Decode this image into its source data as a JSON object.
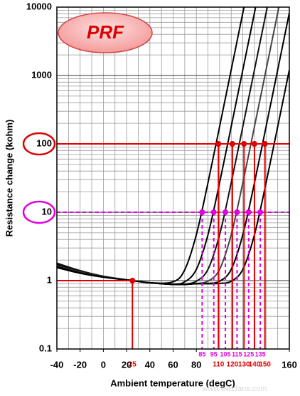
{
  "chart_data": {
    "type": "line",
    "badge": "PRF",
    "x_label": "Ambient temperature (degC)",
    "y_label": "Resistance change (kohm)",
    "watermark": "www.elecfans.com",
    "xlim": [
      -40,
      160
    ],
    "ylim": [
      0.1,
      10000
    ],
    "yscale": "log",
    "xticks": [
      -40,
      -20,
      0,
      20,
      40,
      60,
      80,
      160
    ],
    "yticks": [
      0.1,
      1,
      10,
      100,
      1000,
      10000
    ],
    "grid": true,
    "xminor": 10,
    "series": [
      {
        "color": "#000000",
        "x": [
          -40,
          -20,
          0,
          25,
          40,
          60,
          70,
          80,
          90,
          100,
          110,
          120,
          121
        ],
        "values": [
          1.7,
          1.35,
          1.15,
          1,
          0.93,
          0.96,
          1.44,
          4.7,
          27,
          179,
          1212,
          8255,
          10000
        ]
      },
      {
        "color": "#000000",
        "x": [
          -40,
          -20,
          0,
          25,
          40,
          60,
          70,
          80,
          90,
          100,
          110,
          120,
          130,
          131
        ],
        "values": [
          1.75,
          1.38,
          1.15,
          1,
          0.93,
          0.89,
          0.96,
          1.46,
          4.7,
          27,
          179,
          1212,
          8255,
          10000
        ]
      },
      {
        "color": "#111111",
        "x": [
          -40,
          -20,
          0,
          25,
          40,
          60,
          70,
          80,
          90,
          100,
          110,
          120,
          130,
          140,
          141
        ],
        "values": [
          1.8,
          1.4,
          1.16,
          1,
          0.93,
          0.88,
          0.89,
          0.98,
          1.46,
          4.7,
          27,
          179,
          1212,
          8255,
          10000
        ]
      },
      {
        "color": "#444444",
        "x": [
          -40,
          -20,
          0,
          25,
          40,
          60,
          70,
          80,
          90,
          100,
          110,
          120,
          130,
          140,
          150,
          151
        ],
        "values": [
          1.65,
          1.33,
          1.14,
          1,
          0.93,
          0.88,
          0.88,
          0.91,
          0.98,
          1.46,
          4.7,
          27,
          179,
          1212,
          8255,
          10000
        ]
      },
      {
        "color": "#000000",
        "x": [
          -40,
          -20,
          0,
          25,
          40,
          60,
          70,
          80,
          90,
          100,
          110,
          120,
          130,
          140,
          150,
          160
        ],
        "values": [
          1.6,
          1.3,
          1.13,
          1,
          0.93,
          0.88,
          0.88,
          0.9,
          0.91,
          0.98,
          1.46,
          4.7,
          27,
          179,
          1212,
          8255
        ]
      },
      {
        "color": "#000000",
        "x": [
          -40,
          -20,
          0,
          25,
          40,
          60,
          70,
          80,
          90,
          100,
          110,
          120,
          130,
          140,
          150,
          160
        ],
        "values": [
          1.55,
          1.28,
          1.12,
          1,
          0.93,
          0.88,
          0.88,
          0.9,
          0.9,
          0.91,
          0.98,
          1.46,
          4.7,
          27,
          179,
          1212
        ]
      }
    ],
    "markers": [
      {
        "y": 1,
        "color": "#e00000",
        "dashed": false,
        "hline": "to-point",
        "ring": false,
        "x": [
          25
        ],
        "texts": [
          "25"
        ]
      },
      {
        "y": 100,
        "color": "#e00000",
        "dashed": false,
        "hline": "full",
        "ring": true,
        "x": [
          99,
          111,
          121,
          130,
          139
        ],
        "texts": [
          "110",
          "120",
          "130",
          "140",
          "150"
        ]
      },
      {
        "y": 10,
        "color": "#e000e0",
        "dashed": true,
        "hline": "full",
        "ring": true,
        "x": [
          85,
          95,
          105,
          115,
          125,
          135
        ],
        "texts": [
          "85",
          "95",
          "105",
          "115",
          "125",
          "135"
        ]
      }
    ]
  }
}
